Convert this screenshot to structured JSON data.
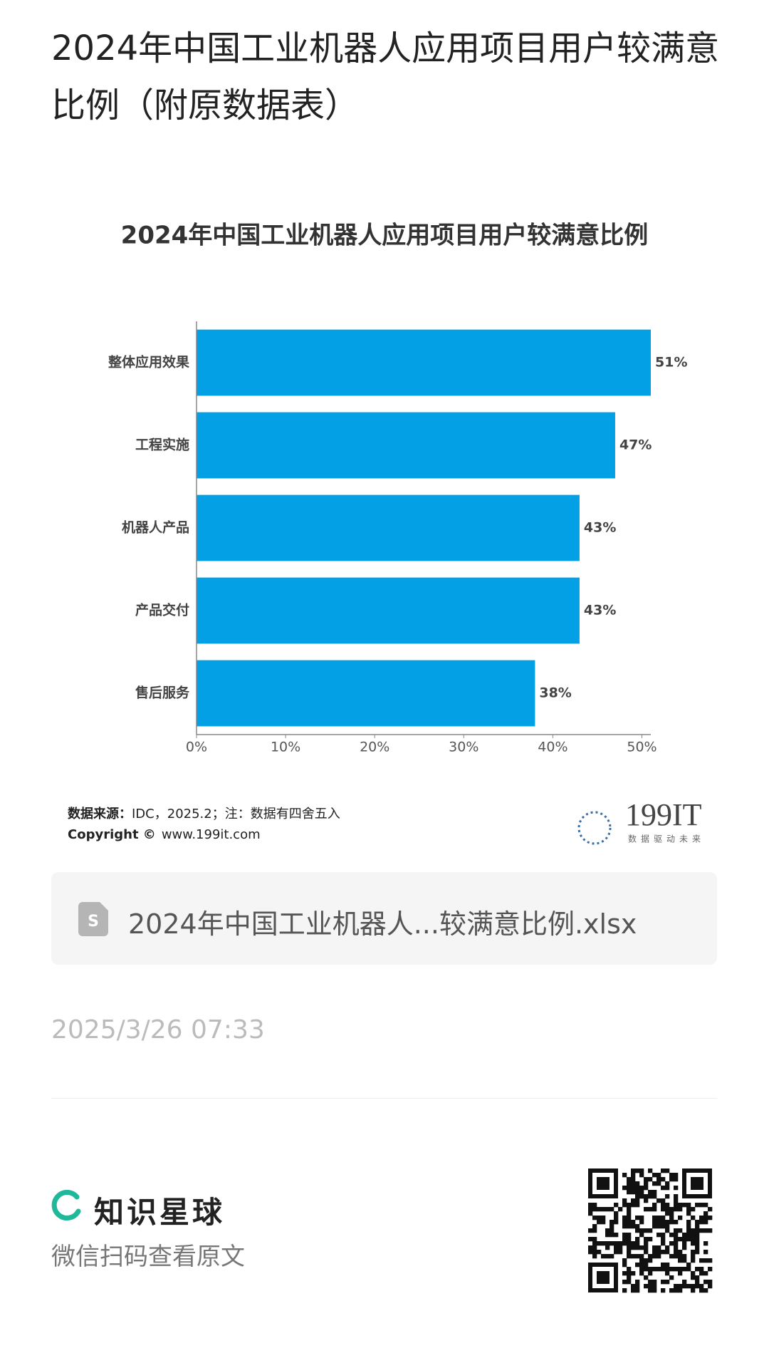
{
  "header": {
    "title": "2024年中国工业机器人应用项目用户较满意比例（附原数据表）"
  },
  "chart_data": {
    "type": "bar",
    "orientation": "horizontal",
    "title": "2024年中国工业机器人应用项目用户较满意比例",
    "categories": [
      "整体应用效果",
      "工程实施",
      "机器人产品",
      "产品交付",
      "售后服务"
    ],
    "values": [
      51,
      47,
      43,
      43,
      38
    ],
    "value_labels": [
      "51%",
      "47%",
      "43%",
      "43%",
      "38%"
    ],
    "color": "#03a0e6",
    "xlim": [
      0,
      51
    ],
    "xticks": [
      {
        "value": 0,
        "label": "0%"
      },
      {
        "value": 10,
        "label": "10%"
      },
      {
        "value": 20,
        "label": "20%"
      },
      {
        "value": 30,
        "label": "30%"
      },
      {
        "value": 40,
        "label": "40%"
      },
      {
        "value": 50,
        "label": "50%"
      }
    ],
    "grid": false
  },
  "source": {
    "label": "数据来源：",
    "text": "IDC，2025.2；注：数据有四舍五入",
    "copyright_label": "Copyright ©",
    "copyright_site": "www.199it.com"
  },
  "logo": {
    "name": "199IT",
    "slogan": "数据驱动未来"
  },
  "attachment": {
    "filename": "2024年中国工业机器人...较满意比例.xlsx"
  },
  "date": "2025/3/26 07:33",
  "footer": {
    "brand": "知识星球",
    "caption": "微信扫码查看原文"
  }
}
